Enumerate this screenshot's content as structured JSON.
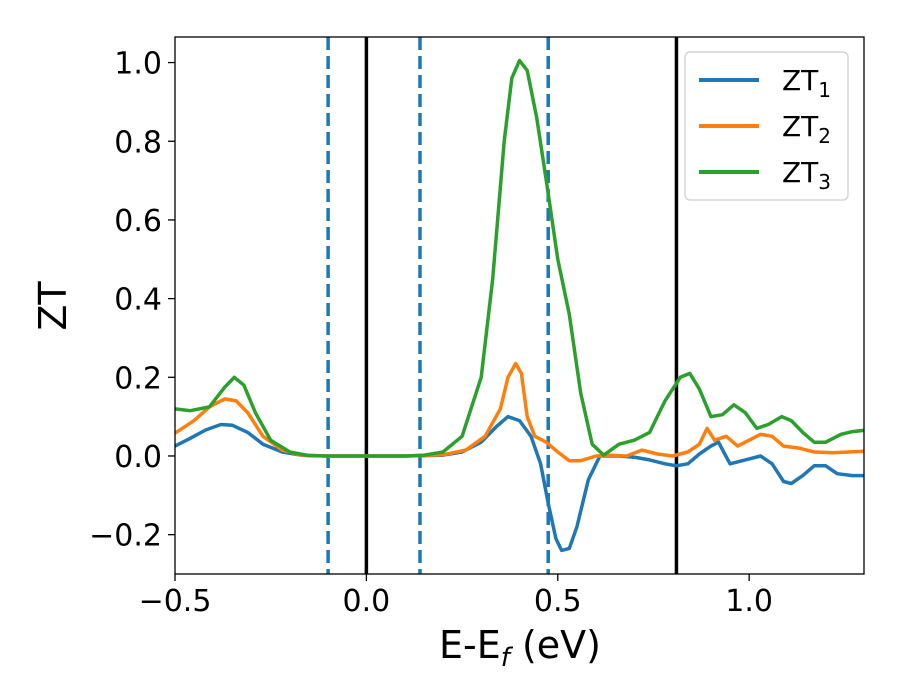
{
  "chart_data": {
    "type": "line",
    "xlabel": "E-E",
    "xlabel_sub": "f",
    "xlabel_unit": " (eV)",
    "ylabel": "ZT",
    "xlim": [
      -0.5,
      1.3
    ],
    "ylim": [
      -0.3,
      1.065
    ],
    "xticks": [
      -0.5,
      0.0,
      0.5,
      1.0
    ],
    "xtick_labels": [
      "−0.5",
      "0.0",
      "0.5",
      "1.0"
    ],
    "yticks": [
      -0.2,
      0.0,
      0.2,
      0.4,
      0.6,
      0.8,
      1.0
    ],
    "ytick_labels": [
      "−0.2",
      "0.0",
      "0.2",
      "0.4",
      "0.6",
      "0.8",
      "1.0"
    ],
    "grid": false,
    "legend_position": "top-right",
    "vlines": [
      {
        "x": -0.1,
        "style": "dashed",
        "color": "#1f77b4"
      },
      {
        "x": 0.0,
        "style": "solid",
        "color": "#000000"
      },
      {
        "x": 0.14,
        "style": "dashed",
        "color": "#1f77b4"
      },
      {
        "x": 0.475,
        "style": "dashed",
        "color": "#1f77b4"
      },
      {
        "x": 0.81,
        "style": "solid",
        "color": "#000000"
      }
    ],
    "series": [
      {
        "name": "ZT",
        "name_sub": "1",
        "color": "#1f77b4",
        "points": [
          [
            -0.5,
            0.025
          ],
          [
            -0.46,
            0.045
          ],
          [
            -0.42,
            0.066
          ],
          [
            -0.38,
            0.08
          ],
          [
            -0.35,
            0.078
          ],
          [
            -0.31,
            0.06
          ],
          [
            -0.27,
            0.03
          ],
          [
            -0.22,
            0.01
          ],
          [
            -0.17,
            0.002
          ],
          [
            -0.1,
            0.0
          ],
          [
            0.0,
            0.0
          ],
          [
            0.1,
            0.0
          ],
          [
            0.2,
            0.002
          ],
          [
            0.25,
            0.01
          ],
          [
            0.3,
            0.035
          ],
          [
            0.34,
            0.075
          ],
          [
            0.37,
            0.1
          ],
          [
            0.4,
            0.09
          ],
          [
            0.43,
            0.05
          ],
          [
            0.455,
            -0.02
          ],
          [
            0.475,
            -0.12
          ],
          [
            0.495,
            -0.21
          ],
          [
            0.51,
            -0.24
          ],
          [
            0.53,
            -0.235
          ],
          [
            0.55,
            -0.18
          ],
          [
            0.58,
            -0.06
          ],
          [
            0.61,
            0.0
          ],
          [
            0.66,
            0.0
          ],
          [
            0.7,
            -0.003
          ],
          [
            0.74,
            -0.01
          ],
          [
            0.78,
            -0.02
          ],
          [
            0.81,
            -0.025
          ],
          [
            0.84,
            -0.02
          ],
          [
            0.87,
            0.005
          ],
          [
            0.9,
            0.025
          ],
          [
            0.92,
            0.035
          ],
          [
            0.95,
            -0.02
          ],
          [
            0.99,
            -0.01
          ],
          [
            1.03,
            0.0
          ],
          [
            1.06,
            -0.02
          ],
          [
            1.09,
            -0.065
          ],
          [
            1.11,
            -0.07
          ],
          [
            1.14,
            -0.05
          ],
          [
            1.17,
            -0.025
          ],
          [
            1.2,
            -0.025
          ],
          [
            1.23,
            -0.045
          ],
          [
            1.27,
            -0.05
          ],
          [
            1.3,
            -0.05
          ]
        ]
      },
      {
        "name": "ZT",
        "name_sub": "2",
        "color": "#ff7f0e",
        "points": [
          [
            -0.5,
            0.058
          ],
          [
            -0.45,
            0.09
          ],
          [
            -0.41,
            0.125
          ],
          [
            -0.37,
            0.145
          ],
          [
            -0.34,
            0.14
          ],
          [
            -0.31,
            0.11
          ],
          [
            -0.27,
            0.05
          ],
          [
            -0.22,
            0.015
          ],
          [
            -0.17,
            0.002
          ],
          [
            -0.1,
            0.0
          ],
          [
            0.0,
            0.0
          ],
          [
            0.1,
            0.0
          ],
          [
            0.2,
            0.003
          ],
          [
            0.26,
            0.015
          ],
          [
            0.31,
            0.05
          ],
          [
            0.35,
            0.12
          ],
          [
            0.37,
            0.2
          ],
          [
            0.39,
            0.235
          ],
          [
            0.405,
            0.21
          ],
          [
            0.42,
            0.1
          ],
          [
            0.44,
            0.05
          ],
          [
            0.47,
            0.035
          ],
          [
            0.5,
            0.01
          ],
          [
            0.53,
            -0.012
          ],
          [
            0.56,
            -0.012
          ],
          [
            0.6,
            0.0
          ],
          [
            0.64,
            0.002
          ],
          [
            0.68,
            0.0
          ],
          [
            0.72,
            0.015
          ],
          [
            0.76,
            0.005
          ],
          [
            0.8,
            0.0
          ],
          [
            0.84,
            0.01
          ],
          [
            0.87,
            0.03
          ],
          [
            0.89,
            0.07
          ],
          [
            0.91,
            0.04
          ],
          [
            0.94,
            0.05
          ],
          [
            0.97,
            0.025
          ],
          [
            1.0,
            0.04
          ],
          [
            1.03,
            0.055
          ],
          [
            1.06,
            0.05
          ],
          [
            1.09,
            0.025
          ],
          [
            1.13,
            0.02
          ],
          [
            1.17,
            0.01
          ],
          [
            1.22,
            0.008
          ],
          [
            1.26,
            0.01
          ],
          [
            1.3,
            0.012
          ]
        ]
      },
      {
        "name": "ZT",
        "name_sub": "3",
        "color": "#2ca02c",
        "points": [
          [
            -0.5,
            0.12
          ],
          [
            -0.46,
            0.115
          ],
          [
            -0.41,
            0.125
          ],
          [
            -0.37,
            0.175
          ],
          [
            -0.345,
            0.2
          ],
          [
            -0.32,
            0.18
          ],
          [
            -0.29,
            0.11
          ],
          [
            -0.25,
            0.04
          ],
          [
            -0.2,
            0.01
          ],
          [
            -0.15,
            0.001
          ],
          [
            -0.1,
            0.0
          ],
          [
            0.0,
            0.0
          ],
          [
            0.1,
            0.0
          ],
          [
            0.15,
            0.002
          ],
          [
            0.2,
            0.01
          ],
          [
            0.25,
            0.05
          ],
          [
            0.3,
            0.2
          ],
          [
            0.33,
            0.45
          ],
          [
            0.36,
            0.8
          ],
          [
            0.38,
            0.96
          ],
          [
            0.4,
            1.005
          ],
          [
            0.42,
            0.98
          ],
          [
            0.445,
            0.86
          ],
          [
            0.47,
            0.7
          ],
          [
            0.5,
            0.5
          ],
          [
            0.53,
            0.36
          ],
          [
            0.56,
            0.16
          ],
          [
            0.59,
            0.03
          ],
          [
            0.62,
            0.002
          ],
          [
            0.66,
            0.03
          ],
          [
            0.7,
            0.04
          ],
          [
            0.74,
            0.06
          ],
          [
            0.78,
            0.14
          ],
          [
            0.82,
            0.2
          ],
          [
            0.845,
            0.21
          ],
          [
            0.87,
            0.17
          ],
          [
            0.9,
            0.1
          ],
          [
            0.93,
            0.105
          ],
          [
            0.96,
            0.13
          ],
          [
            0.99,
            0.11
          ],
          [
            1.02,
            0.07
          ],
          [
            1.05,
            0.08
          ],
          [
            1.085,
            0.1
          ],
          [
            1.11,
            0.09
          ],
          [
            1.14,
            0.06
          ],
          [
            1.17,
            0.035
          ],
          [
            1.2,
            0.035
          ],
          [
            1.24,
            0.055
          ],
          [
            1.27,
            0.062
          ],
          [
            1.3,
            0.065
          ]
        ]
      }
    ]
  }
}
